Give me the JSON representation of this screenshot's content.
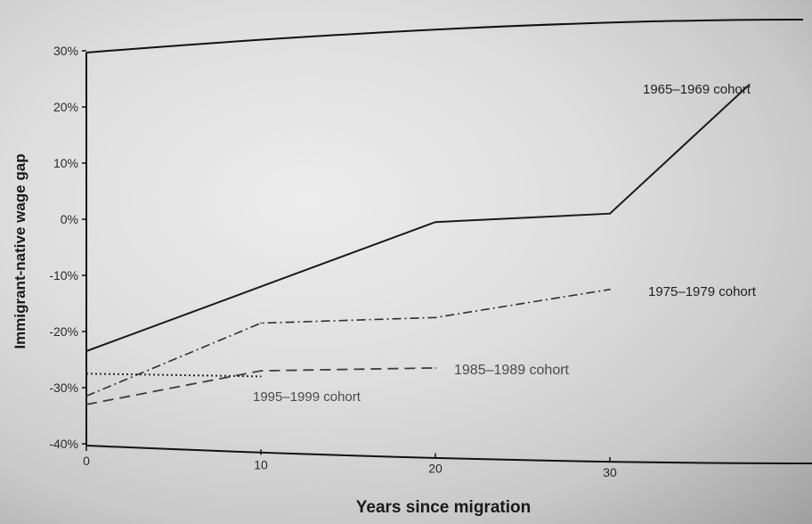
{
  "chart_data": {
    "type": "line",
    "title": "",
    "xlabel": "Years since migration",
    "ylabel": "Immigrant-native wage gap",
    "xlim": [
      0,
      38
    ],
    "ylim": [
      -40,
      30
    ],
    "x_ticks": [
      0,
      10,
      20,
      30
    ],
    "x_tick_labels": [
      "0",
      "10",
      "20",
      "30"
    ],
    "y_ticks": [
      30,
      20,
      10,
      0,
      -10,
      -20,
      -30,
      -40
    ],
    "y_tick_labels": [
      "30%",
      "20%",
      "10%",
      "0%",
      "-10%",
      "-20%",
      "-30%",
      "-40%"
    ],
    "grid": false,
    "legend": "inline labels",
    "series": [
      {
        "name": "1965–1969 cohort",
        "style": "solid",
        "color": "#1a1a1a",
        "x": [
          0,
          10,
          20,
          30,
          38
        ],
        "y": [
          -23.5,
          -12,
          -0.5,
          1,
          24
        ]
      },
      {
        "name": "1975–1979 cohort",
        "style": "dashdot",
        "color": "#2e2e2e",
        "x": [
          0,
          10,
          20,
          30
        ],
        "y": [
          -31.5,
          -18.5,
          -17.5,
          -12.5
        ]
      },
      {
        "name": "1985–1989 cohort",
        "style": "dashed",
        "color": "#3c3c3c",
        "x": [
          0,
          10,
          20
        ],
        "y": [
          -33,
          -27,
          -26.5
        ]
      },
      {
        "name": "1995–1999 cohort",
        "style": "dotted",
        "color": "#2a2a2a",
        "x": [
          0,
          10
        ],
        "y": [
          -27.5,
          -28
        ]
      }
    ]
  }
}
